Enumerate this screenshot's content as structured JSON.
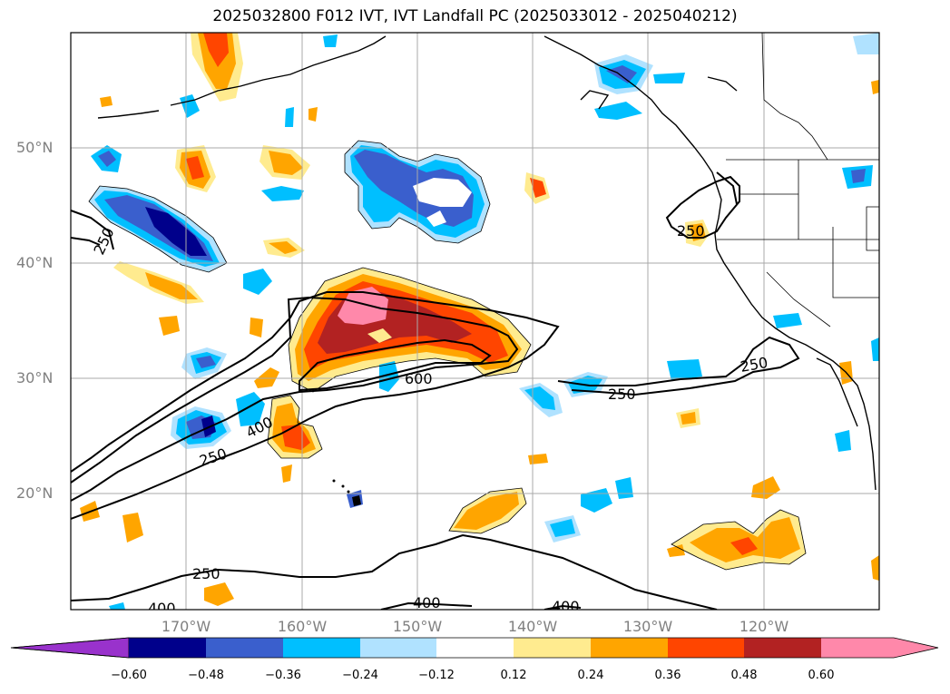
{
  "title": "2025032800 F012 IVT, IVT Landfall PC (2025033012 - 2025040212)",
  "map": {
    "lat_labels": [
      "50°N",
      "40°N",
      "30°N",
      "20°N"
    ],
    "lon_labels": [
      "170°W",
      "160°W",
      "150°W",
      "140°W",
      "130°W",
      "120°W"
    ],
    "contour_labels": [
      "250",
      "250",
      "250",
      "250",
      "250",
      "600",
      "400",
      "400",
      "400",
      "400"
    ],
    "grid_color": "#a9a9a9",
    "coast_color": "#000000"
  },
  "colorbar": {
    "tick_labels": [
      "−0.60",
      "−0.48",
      "−0.36",
      "−0.24",
      "−0.12",
      "0.12",
      "0.24",
      "0.36",
      "0.48",
      "0.60"
    ],
    "colors": [
      "#9932cc",
      "#00008b",
      "#3a5fcd",
      "#00bfff",
      "#b0e2ff",
      "#ffffff",
      "#ffeb8f",
      "#ffa500",
      "#ff4500",
      "#b22222",
      "#ff88aa"
    ]
  }
}
